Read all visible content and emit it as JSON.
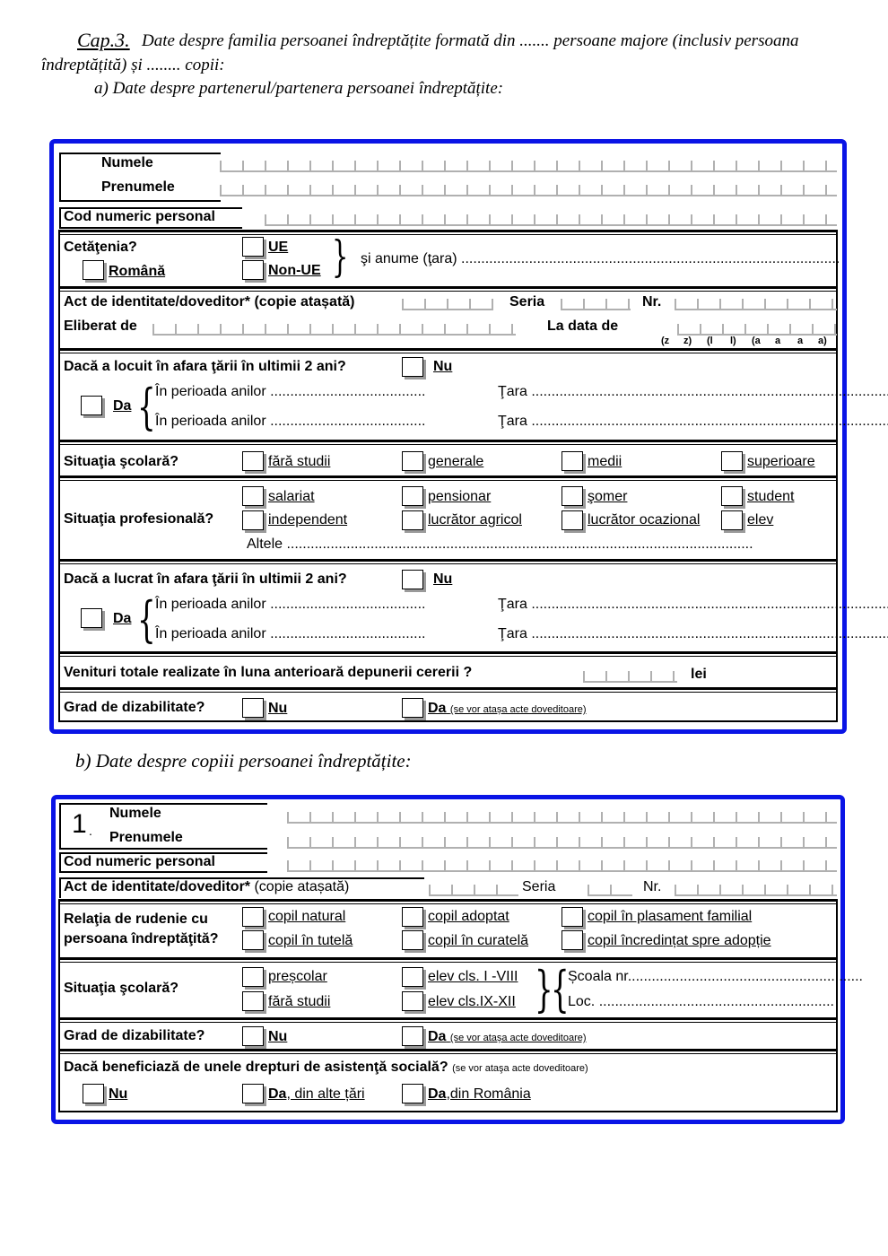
{
  "header": {
    "cap": "Cap.3.",
    "line1": "Date despre familia persoanei îndreptățite formată din ....... persoane majore (inclusiv persoana",
    "line2": "îndreptățită) și ........ copii:",
    "section_a": "a) Date despre partenerul/partenera persoanei îndreptățite:",
    "section_b": "b)  Date despre copiii persoanei îndreptățite:"
  },
  "partner": {
    "numele": "Numele",
    "prenumele": "Prenumele",
    "cnp": "Cod numeric personal",
    "cetatenia": "Cetăţenia?",
    "romana": "Română",
    "ue": "UE",
    "non_ue": "Non-UE",
    "si_anume": "şi anume (ţara) ...............................................................................................",
    "act": "Act de identitate/doveditor* (copie atașată)",
    "seria": "Seria",
    "nr": "Nr.",
    "eliberat": "Eliberat de",
    "la_data": "La data de",
    "date_letters": [
      "(z",
      "z)",
      "(l",
      "l)",
      "(a",
      "a",
      "a",
      "a)"
    ],
    "locuit_q": "Dacă a locuit în afara ţării în ultimii 2 ani?",
    "lucrat_q": "Dacă a lucrat în afara ţării în ultimii 2 ani?",
    "nu": "Nu",
    "da": "Da",
    "perioada": "În perioada anilor .......................................",
    "tara": "Ţara ..........................................................................................",
    "scolara": "Situaţia şcolară?",
    "scolara_opts": [
      "fără studii",
      "generale",
      "medii",
      "superioare"
    ],
    "profesionala": "Situaţia profesională?",
    "prof_opts_row1": [
      "salariat",
      "pensionar",
      "şomer",
      "student"
    ],
    "prof_opts_row2": [
      "independent",
      "lucrător agricol",
      "lucrător ocazional",
      "elev"
    ],
    "altele": "Altele .....................................................................................................................",
    "venituri": "Venituri totale realizate în luna anterioară depunerii cererii ?",
    "lei": "lei",
    "grad": "Grad de dizabilitate?",
    "da_note": "(se vor atașa acte doveditoare)"
  },
  "child": {
    "index": "1",
    "numele": "Numele",
    "prenumele": "Prenumele",
    "cnp": "Cod numeric personal",
    "act_bold": "Act de identitate/doveditor*",
    "act_rest": " (copie atașată)",
    "seria": "Seria",
    "nr": "Nr.",
    "relatia_1": "Relaţia de rudenie cu",
    "relatia_2": "persoana îndreptăţită?",
    "rel_row1": [
      "copil natural",
      "copil adoptat",
      "copil în plasament familial"
    ],
    "rel_row2": [
      "copil în tutelă",
      "copil în curatelă",
      "copil încredințat spre adopție"
    ],
    "scolara": "Situaţia şcolară?",
    "sc_row1": [
      "preșcolar",
      "elev cls. I -VIII"
    ],
    "sc_row2": [
      "fără studii",
      "elev cls.IX-XII"
    ],
    "scoala": "Școala nr...........................................................",
    "loc": "Loc. ...........................................................",
    "grad": "Grad de dizabilitate?",
    "nu": "Nu",
    "da": "Da",
    "da_note": "(se vor atașa acte doveditoare)",
    "beneficiaza": "Dacă beneficiază de unele drepturi de asistenţă socială?",
    "beneficiaza_note": "(se vor ataşa acte doveditoare)",
    "ben_nu": "Nu",
    "ben_da_alte_b": "Da",
    "ben_da_alte": ", din alte țări",
    "ben_da_ro_b": "Da",
    "ben_da_ro": ",din România"
  },
  "colors": {
    "frame": "#0a14e6"
  }
}
